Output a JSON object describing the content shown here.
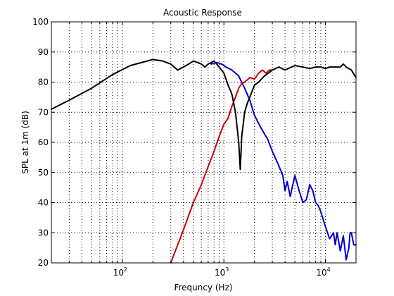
{
  "chart_data": {
    "type": "line",
    "title": "Acoustic Response",
    "xlabel": "Frequncy (Hz)",
    "ylabel": "SPL at 1m (dB)",
    "x_scale": "log",
    "xlim": [
      20,
      20000
    ],
    "ylim": [
      20,
      100
    ],
    "grid": true,
    "x_ticks": [
      {
        "value": 100,
        "base": "10",
        "exp": "2"
      },
      {
        "value": 1000,
        "base": "10",
        "exp": "3"
      },
      {
        "value": 10000,
        "base": "10",
        "exp": "4"
      }
    ],
    "y_ticks": [
      20,
      30,
      40,
      50,
      60,
      70,
      80,
      90,
      100
    ],
    "series": [
      {
        "color": "#0000cc",
        "x": [
          750,
          850,
          950,
          1050,
          1200,
          1400,
          1600,
          1800,
          2000,
          2300,
          2700,
          3000,
          3400,
          3800,
          4000,
          4200,
          4500,
          5000,
          5500,
          6000,
          6500,
          7000,
          7500,
          8000,
          8500,
          9000,
          10000,
          11000,
          12000,
          12500,
          13000,
          13500,
          14000,
          15000,
          16000,
          17000,
          17500,
          18000,
          19000,
          20000
        ],
        "y": [
          86,
          86.5,
          86,
          85,
          84,
          82,
          78,
          74,
          69,
          65,
          61,
          57,
          53,
          49,
          44,
          47,
          42,
          49,
          44,
          40,
          41,
          46,
          44,
          40,
          39,
          37,
          32,
          28,
          30,
          26,
          30,
          27,
          24,
          29,
          21,
          25,
          30,
          30,
          26,
          26
        ]
      },
      {
        "color": "#cc0000",
        "x": [
          300,
          400,
          500,
          600,
          700,
          800,
          900,
          1000,
          1100,
          1200,
          1300,
          1400,
          1500,
          1600,
          1800,
          2000,
          2200,
          2400,
          2600,
          2800,
          3000
        ],
        "y": [
          20,
          31,
          40,
          46,
          52,
          57,
          62,
          66,
          68,
          72,
          75,
          78,
          79.5,
          80,
          81.5,
          81,
          83,
          84,
          83,
          84,
          84
        ]
      },
      {
        "color": "#000000",
        "x": [
          20,
          30,
          50,
          80,
          120,
          200,
          250,
          300,
          350,
          400,
          450,
          500,
          550,
          600,
          650,
          700,
          750,
          800,
          850,
          900,
          1000,
          1100,
          1200,
          1300,
          1400,
          1450,
          1500,
          1550,
          1600,
          1700,
          1800,
          2000,
          2200,
          2500,
          3000,
          3500,
          4000,
          5000,
          6000,
          7000,
          8000,
          9000,
          10000,
          11000,
          12000,
          13000,
          14000,
          15000,
          16000,
          18000,
          20000
        ],
        "y": [
          71,
          74,
          78,
          82.5,
          85.5,
          87.5,
          87,
          86,
          84,
          85,
          86,
          87,
          86.5,
          86,
          85,
          86,
          86.5,
          87,
          86,
          85,
          83,
          79,
          76,
          70,
          60,
          51,
          62,
          66,
          70,
          73,
          75,
          79,
          80,
          82,
          84,
          85,
          84,
          85.5,
          85,
          84.5,
          85,
          85,
          84.5,
          85,
          85,
          85,
          85,
          86,
          85,
          84,
          81.5
        ]
      }
    ]
  }
}
